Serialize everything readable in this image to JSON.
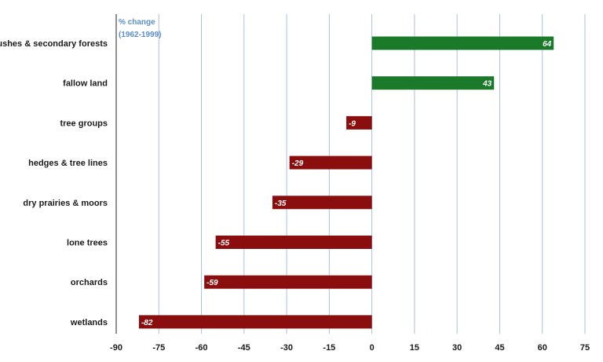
{
  "chart_data": {
    "type": "bar",
    "orientation": "horizontal",
    "axis_title_line1": "% change",
    "axis_title_line2": "(1962-1999)",
    "categories": [
      "bushes & secondary forests",
      "fallow land",
      "tree groups",
      "hedges & tree lines",
      "dry prairies & moors",
      "lone trees",
      "orchards",
      "wetlands"
    ],
    "values": [
      64,
      43,
      -9,
      -29,
      -35,
      -55,
      -59,
      -82
    ],
    "xlim": [
      -90,
      75
    ],
    "xticks": [
      -90,
      -75,
      -60,
      -45,
      -30,
      -15,
      0,
      15,
      30,
      45,
      60,
      75
    ],
    "grid": true,
    "colors": {
      "positive": "#1a7a2a",
      "negative": "#8b0e0e",
      "grid": "#a9c1e0",
      "axis_title": "#5b8ec9"
    }
  }
}
